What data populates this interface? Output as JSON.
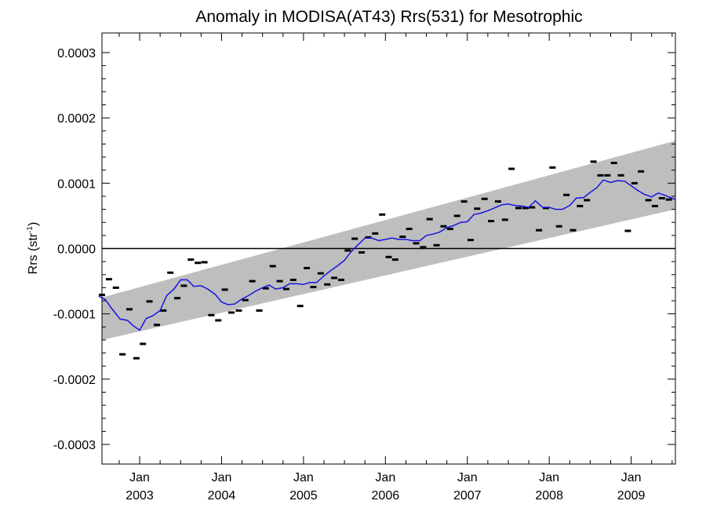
{
  "chart_data": {
    "type": "scatter",
    "title": "Anomaly in MODISA(AT43) Rrs(531) for Mesotrophic",
    "ylabel": {
      "main": "Rrs (str",
      "sup": "-1",
      "close": ")"
    },
    "xlim": [
      2002.54,
      2009.54
    ],
    "ylim": [
      -0.00033,
      0.00033
    ],
    "yticks": [
      -0.0003,
      -0.0002,
      -0.0001,
      0.0,
      0.0001,
      0.0002,
      0.0003
    ],
    "ytick_labels": [
      "-0.0003",
      "-0.0002",
      "-0.0001",
      "0.0000",
      "0.0001",
      "0.0002",
      "0.0003"
    ],
    "xticks": [
      {
        "x": 2003.0,
        "month": "Jan",
        "year": "2003"
      },
      {
        "x": 2004.0,
        "month": "Jan",
        "year": "2004"
      },
      {
        "x": 2005.0,
        "month": "Jan",
        "year": "2005"
      },
      {
        "x": 2006.0,
        "month": "Jan",
        "year": "2006"
      },
      {
        "x": 2007.0,
        "month": "Jan",
        "year": "2007"
      },
      {
        "x": 2008.0,
        "month": "Jan",
        "year": "2008"
      },
      {
        "x": 2009.0,
        "month": "Jan",
        "year": "2009"
      }
    ],
    "band": {
      "start": [
        2002.54,
        -7.5e-05,
        -0.00014
      ],
      "end": [
        2009.54,
        0.000165,
        6e-05
      ]
    },
    "zero_line": 0.0,
    "grid": false,
    "colors": {
      "band": "#bebebe",
      "running_mean": "#1515e0",
      "points": "#000000",
      "zero_line": "#000000"
    },
    "points": [
      [
        2002.54,
        -7.1e-05
      ],
      [
        2002.625,
        -4.7e-05
      ],
      [
        2002.71,
        -6e-05
      ],
      [
        2002.79,
        -0.000162
      ],
      [
        2002.875,
        -9.3e-05
      ],
      [
        2002.96,
        -0.000168
      ],
      [
        2003.04,
        -0.000146
      ],
      [
        2003.12,
        -8.1e-05
      ],
      [
        2003.21,
        -0.000117
      ],
      [
        2003.29,
        -9.5e-05
      ],
      [
        2003.375,
        -3.7e-05
      ],
      [
        2003.46,
        -7.6e-05
      ],
      [
        2003.54,
        -5.7e-05
      ],
      [
        2003.625,
        -1.7e-05
      ],
      [
        2003.71,
        -2.2e-05
      ],
      [
        2003.79,
        -2.1e-05
      ],
      [
        2003.875,
        -0.000102
      ],
      [
        2003.96,
        -0.00011
      ],
      [
        2004.04,
        -6.3e-05
      ],
      [
        2004.12,
        -9.8e-05
      ],
      [
        2004.21,
        -9.5e-05
      ],
      [
        2004.29,
        -7.9e-05
      ],
      [
        2004.375,
        -5e-05
      ],
      [
        2004.46,
        -9.5e-05
      ],
      [
        2004.54,
        -6.1e-05
      ],
      [
        2004.625,
        -2.7e-05
      ],
      [
        2004.71,
        -5e-05
      ],
      [
        2004.79,
        -6.2e-05
      ],
      [
        2004.875,
        -4.8e-05
      ],
      [
        2004.96,
        -8.8e-05
      ],
      [
        2005.04,
        -3e-05
      ],
      [
        2005.12,
        -5.9e-05
      ],
      [
        2005.21,
        -3.8e-05
      ],
      [
        2005.29,
        -5.5e-05
      ],
      [
        2005.375,
        -4.5e-05
      ],
      [
        2005.46,
        -4.8e-05
      ],
      [
        2005.54,
        -3e-06
      ],
      [
        2005.625,
        1.5e-05
      ],
      [
        2005.71,
        -6e-06
      ],
      [
        2005.79,
        1.7e-05
      ],
      [
        2005.875,
        2.3e-05
      ],
      [
        2005.96,
        5.2e-05
      ],
      [
        2006.04,
        -1.3e-05
      ],
      [
        2006.12,
        -1.7e-05
      ],
      [
        2006.21,
        1.8e-05
      ],
      [
        2006.29,
        3e-05
      ],
      [
        2006.375,
        8e-06
      ],
      [
        2006.46,
        2e-06
      ],
      [
        2006.54,
        4.5e-05
      ],
      [
        2006.625,
        5e-06
      ],
      [
        2006.71,
        3.4e-05
      ],
      [
        2006.79,
        3e-05
      ],
      [
        2006.875,
        5e-05
      ],
      [
        2006.96,
        7.2e-05
      ],
      [
        2007.04,
        1.3e-05
      ],
      [
        2007.12,
        6.1e-05
      ],
      [
        2007.21,
        7.6e-05
      ],
      [
        2007.29,
        4.2e-05
      ],
      [
        2007.375,
        7.2e-05
      ],
      [
        2007.46,
        4.4e-05
      ],
      [
        2007.54,
        0.000122
      ],
      [
        2007.625,
        6.2e-05
      ],
      [
        2007.71,
        6.2e-05
      ],
      [
        2007.79,
        6.3e-05
      ],
      [
        2007.875,
        2.8e-05
      ],
      [
        2007.96,
        6.2e-05
      ],
      [
        2008.04,
        0.000124
      ],
      [
        2008.12,
        3.4e-05
      ],
      [
        2008.21,
        8.2e-05
      ],
      [
        2008.29,
        2.8e-05
      ],
      [
        2008.375,
        6.5e-05
      ],
      [
        2008.46,
        7.4e-05
      ],
      [
        2008.54,
        0.000133
      ],
      [
        2008.625,
        0.000112
      ],
      [
        2008.71,
        0.000112
      ],
      [
        2008.79,
        0.000131
      ],
      [
        2008.875,
        0.000112
      ],
      [
        2008.96,
        2.7e-05
      ],
      [
        2009.04,
        0.0001
      ],
      [
        2009.12,
        0.000118
      ],
      [
        2009.21,
        7.4e-05
      ],
      [
        2009.29,
        6.5e-05
      ],
      [
        2009.375,
        7.7e-05
      ],
      [
        2009.46,
        7.5e-05
      ]
    ],
    "running_mean": [
      [
        2002.5,
        -7.3e-05
      ],
      [
        2002.58,
        -7.8e-05
      ],
      [
        2002.66,
        -9.2e-05
      ],
      [
        2002.76,
        -0.000108
      ],
      [
        2002.85,
        -0.00011
      ],
      [
        2002.92,
        -0.000118
      ],
      [
        2003.0,
        -0.000125
      ],
      [
        2003.08,
        -0.000107
      ],
      [
        2003.16,
        -0.000103
      ],
      [
        2003.25,
        -9.5e-05
      ],
      [
        2003.33,
        -7.2e-05
      ],
      [
        2003.42,
        -6.2e-05
      ],
      [
        2003.5,
        -4.8e-05
      ],
      [
        2003.58,
        -4.8e-05
      ],
      [
        2003.66,
        -5.8e-05
      ],
      [
        2003.75,
        -5.7e-05
      ],
      [
        2003.83,
        -6.2e-05
      ],
      [
        2003.92,
        -7e-05
      ],
      [
        2004.0,
        -8.2e-05
      ],
      [
        2004.08,
        -8.6e-05
      ],
      [
        2004.16,
        -8.5e-05
      ],
      [
        2004.25,
        -7.7e-05
      ],
      [
        2004.33,
        -7.2e-05
      ],
      [
        2004.42,
        -6.5e-05
      ],
      [
        2004.5,
        -6e-05
      ],
      [
        2004.58,
        -5.6e-05
      ],
      [
        2004.66,
        -6.2e-05
      ],
      [
        2004.75,
        -6e-05
      ],
      [
        2004.83,
        -5.4e-05
      ],
      [
        2004.92,
        -5.4e-05
      ],
      [
        2005.0,
        -5.5e-05
      ],
      [
        2005.08,
        -5.2e-05
      ],
      [
        2005.16,
        -5.2e-05
      ],
      [
        2005.25,
        -4.2e-05
      ],
      [
        2005.33,
        -3.4e-05
      ],
      [
        2005.42,
        -2.6e-05
      ],
      [
        2005.5,
        -1.8e-05
      ],
      [
        2005.58,
        -5e-06
      ],
      [
        2005.66,
        5e-06
      ],
      [
        2005.75,
        1.6e-05
      ],
      [
        2005.83,
        1.6e-05
      ],
      [
        2005.92,
        1.2e-05
      ],
      [
        2006.0,
        1.4e-05
      ],
      [
        2006.08,
        1.6e-05
      ],
      [
        2006.16,
        1.4e-05
      ],
      [
        2006.25,
        1.4e-05
      ],
      [
        2006.33,
        1.2e-05
      ],
      [
        2006.42,
        1.2e-05
      ],
      [
        2006.5,
        2e-05
      ],
      [
        2006.58,
        2.2e-05
      ],
      [
        2006.66,
        2.5e-05
      ],
      [
        2006.75,
        3.2e-05
      ],
      [
        2006.83,
        3.5e-05
      ],
      [
        2006.92,
        4e-05
      ],
      [
        2007.0,
        4.1e-05
      ],
      [
        2007.08,
        5.2e-05
      ],
      [
        2007.16,
        5.4e-05
      ],
      [
        2007.25,
        5.8e-05
      ],
      [
        2007.33,
        6.2e-05
      ],
      [
        2007.42,
        6.7e-05
      ],
      [
        2007.5,
        6.8e-05
      ],
      [
        2007.58,
        6.6e-05
      ],
      [
        2007.66,
        6.5e-05
      ],
      [
        2007.75,
        6.3e-05
      ],
      [
        2007.83,
        7.3e-05
      ],
      [
        2007.92,
        6.3e-05
      ],
      [
        2008.0,
        6.3e-05
      ],
      [
        2008.08,
        6e-05
      ],
      [
        2008.16,
        6e-05
      ],
      [
        2008.25,
        6.6e-05
      ],
      [
        2008.33,
        7.7e-05
      ],
      [
        2008.42,
        7.8e-05
      ],
      [
        2008.5,
        8.6e-05
      ],
      [
        2008.58,
        9.3e-05
      ],
      [
        2008.66,
        0.000105
      ],
      [
        2008.75,
        0.000101
      ],
      [
        2008.83,
        0.000104
      ],
      [
        2008.92,
        0.000103
      ],
      [
        2009.0,
        9.6e-05
      ],
      [
        2009.08,
        8.9e-05
      ],
      [
        2009.16,
        8.3e-05
      ],
      [
        2009.25,
        7.9e-05
      ],
      [
        2009.33,
        8.5e-05
      ],
      [
        2009.42,
        8.1e-05
      ],
      [
        2009.54,
        7.5e-05
      ]
    ]
  }
}
